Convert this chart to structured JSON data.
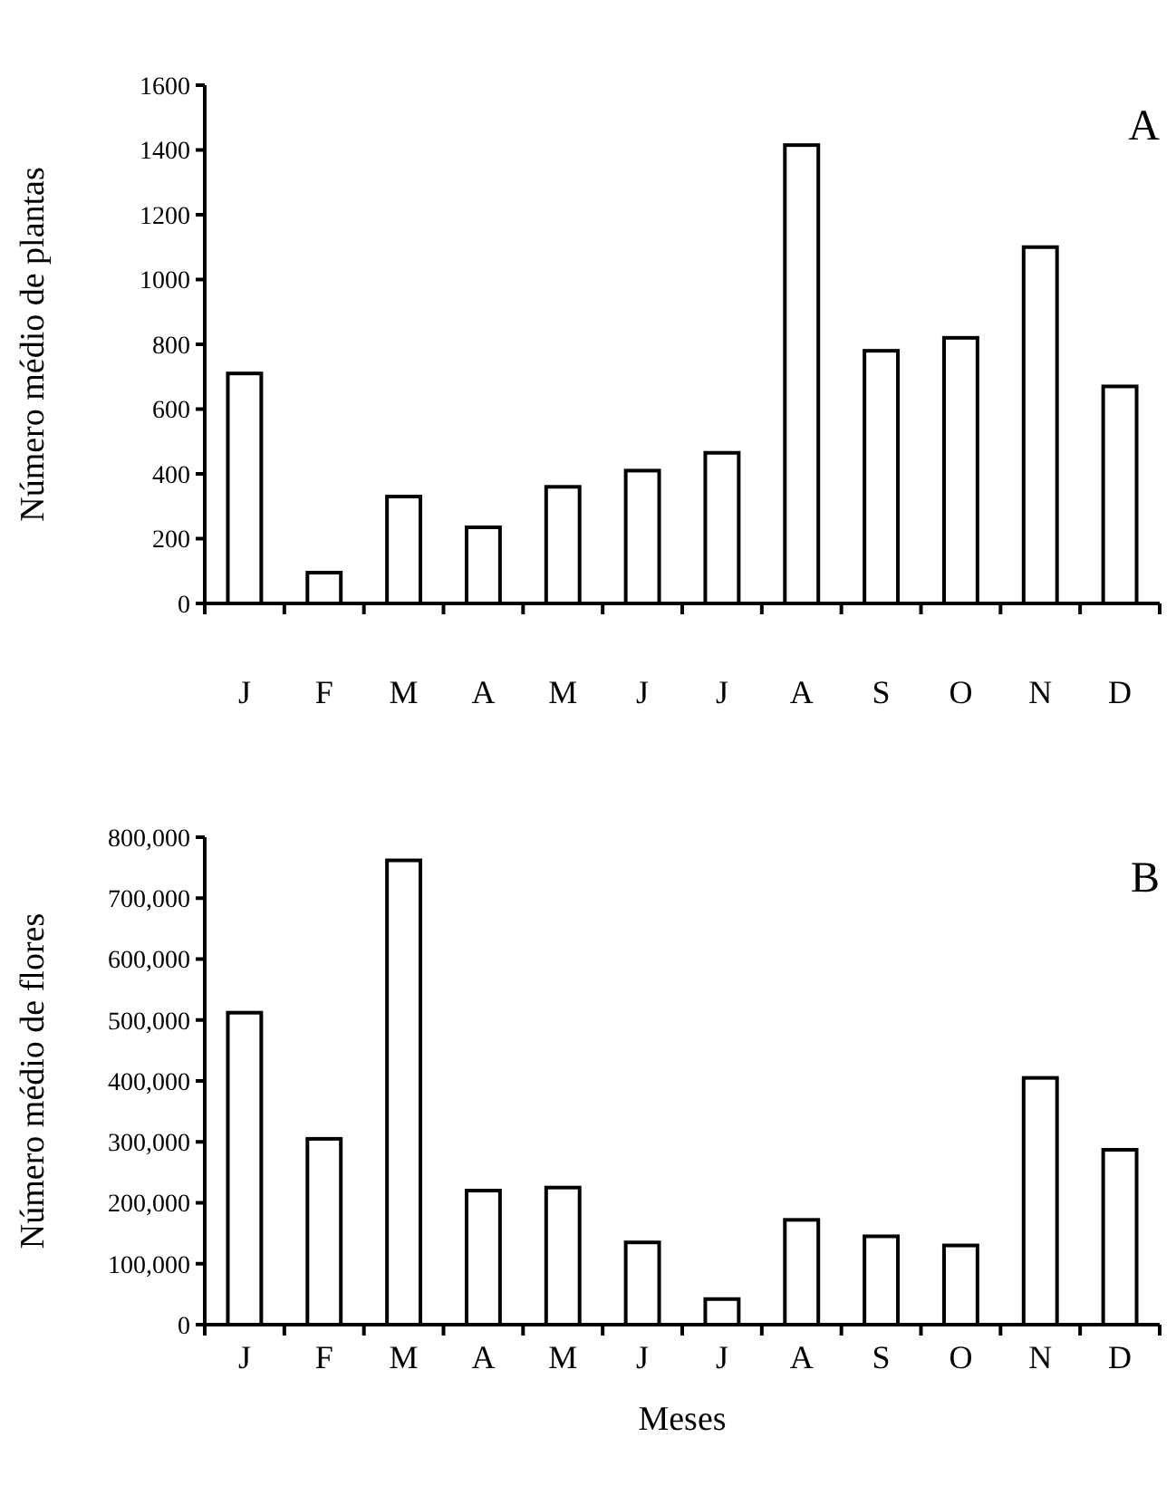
{
  "chart_data": [
    {
      "type": "bar",
      "ylabel": "Número médio de plantas",
      "annotations": [
        "A"
      ],
      "categories": [
        "J",
        "F",
        "M",
        "A",
        "M",
        "J",
        "J",
        "A",
        "S",
        "O",
        "N",
        "D"
      ],
      "series": [
        {
          "color": "#ffffff",
          "values": [
            710,
            95,
            330,
            235,
            360,
            410,
            465,
            1415,
            780,
            820,
            1100,
            670
          ]
        }
      ],
      "ylim": [
        0,
        1600
      ],
      "yticks": [
        0,
        200,
        400,
        600,
        800,
        1000,
        1200,
        1400,
        1600
      ],
      "grid": false
    },
    {
      "type": "bar",
      "ylabel": "Número médio de flores",
      "xlabel": "Meses",
      "annotations": [
        "B"
      ],
      "categories": [
        "J",
        "F",
        "M",
        "A",
        "M",
        "J",
        "J",
        "A",
        "S",
        "O",
        "N",
        "D"
      ],
      "series": [
        {
          "color": "#ffffff",
          "values": [
            512000,
            305000,
            762000,
            220000,
            225000,
            135000,
            42000,
            172000,
            145000,
            130000,
            405000,
            287000
          ]
        }
      ],
      "ylim": [
        0,
        800000
      ],
      "yticks": [
        {
          "value": 0,
          "label": "0"
        },
        {
          "value": 100000,
          "label": "100,000"
        },
        {
          "value": 200000,
          "label": "200,000"
        },
        {
          "value": 300000,
          "label": "300,000"
        },
        {
          "value": 400000,
          "label": "400,000"
        },
        {
          "value": 500000,
          "label": "500,000"
        },
        {
          "value": 600000,
          "label": "600,000"
        },
        {
          "value": 700000,
          "label": "700,000"
        },
        {
          "value": 800000,
          "label": "800,000"
        }
      ],
      "grid": false
    }
  ]
}
